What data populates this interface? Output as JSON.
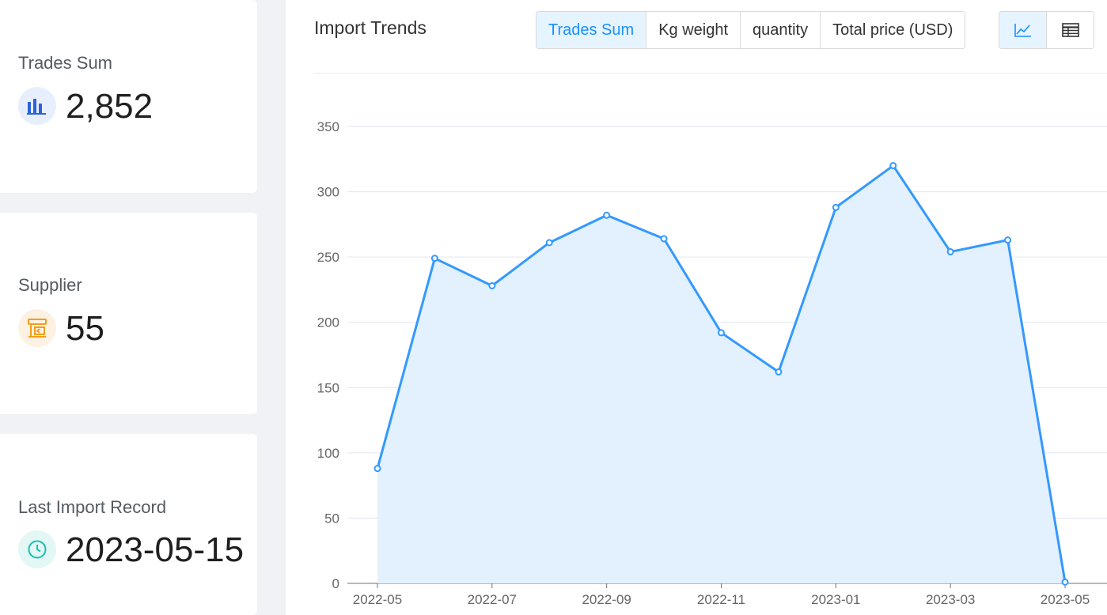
{
  "stats": {
    "trades": {
      "label": "Trades Sum",
      "value": "2,852",
      "icon": "bar-chart-icon",
      "color": "#2b63d9"
    },
    "supplier": {
      "label": "Supplier",
      "value": "55",
      "icon": "supplier-store-icon",
      "color": "#f29d1b"
    },
    "last_record": {
      "label": "Last Import Record",
      "value": "2023-05-15",
      "icon": "clock-icon",
      "color": "#14c2b4"
    }
  },
  "panel": {
    "title": "Import Trends",
    "tabs": [
      {
        "label": "Trades Sum",
        "active": true
      },
      {
        "label": "Kg weight",
        "active": false
      },
      {
        "label": "quantity",
        "active": false
      },
      {
        "label": "Total price (USD)",
        "active": false
      }
    ],
    "view_toggle": [
      {
        "icon": "line-chart-icon",
        "active": true
      },
      {
        "icon": "table-icon",
        "active": false
      }
    ]
  },
  "colors": {
    "accent": "#1890ff",
    "line": "#3399ff",
    "area": "#e3f0fd"
  },
  "chart_data": {
    "type": "area",
    "title": "",
    "xlabel": "",
    "ylabel": "",
    "x": [
      "2022-05",
      "2022-06",
      "2022-07",
      "2022-08",
      "2022-09",
      "2022-10",
      "2022-11",
      "2022-12",
      "2023-01",
      "2023-02",
      "2023-03",
      "2023-04",
      "2023-05"
    ],
    "values": [
      88,
      249,
      228,
      261,
      282,
      264,
      192,
      162,
      288,
      320,
      254,
      263,
      1
    ],
    "x_tick_labels": [
      "2022-05",
      "2022-07",
      "2022-09",
      "2022-11",
      "2023-01",
      "2023-03",
      "2023-05"
    ],
    "y_ticks": [
      0,
      50,
      100,
      150,
      200,
      250,
      300,
      350
    ],
    "ylim": [
      0,
      350
    ],
    "grid": true
  }
}
